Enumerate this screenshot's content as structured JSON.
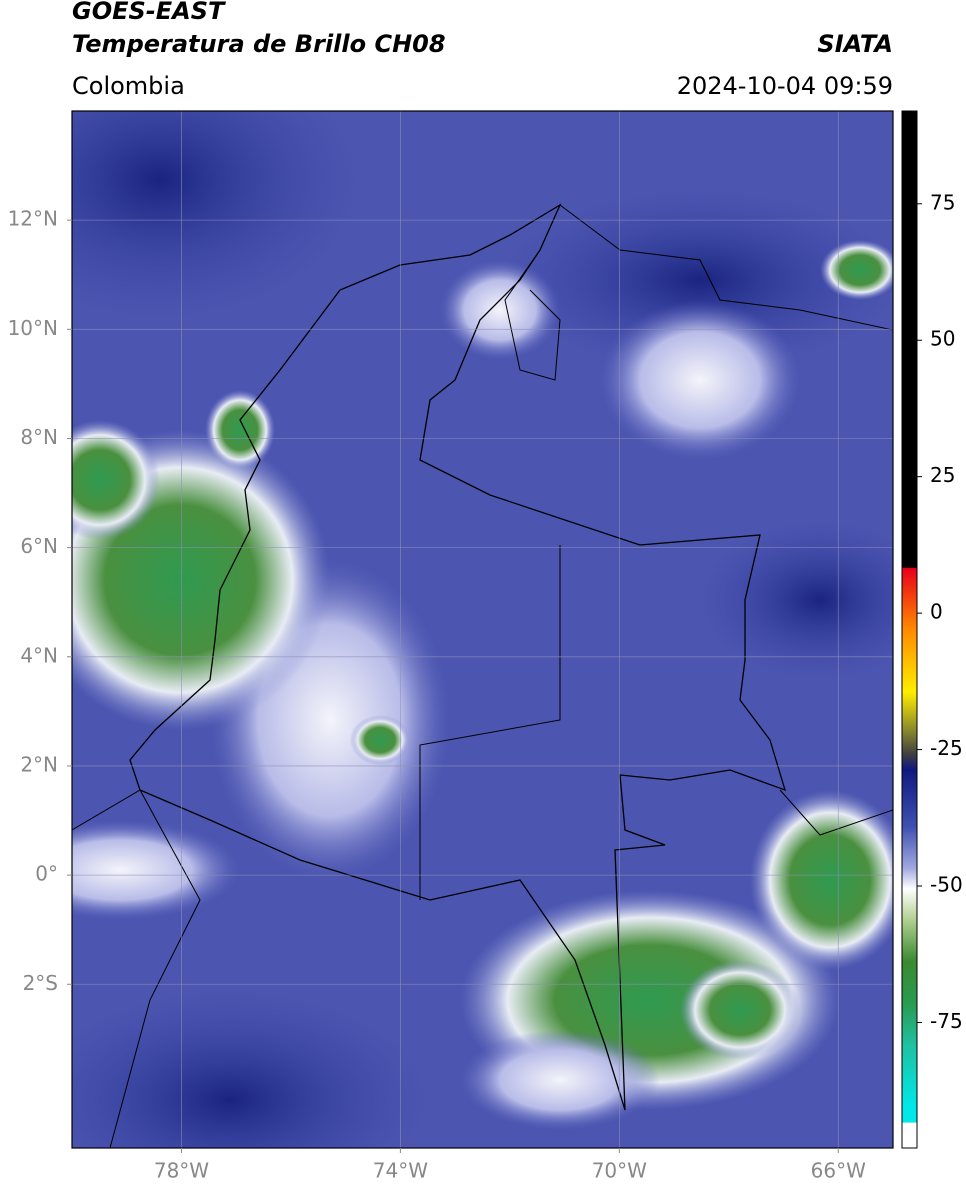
{
  "header": {
    "title": "GOES-EAST",
    "subtitle": "Temperatura de Brillo CH08",
    "source": "SIATA",
    "region": "Colombia",
    "datetime": "2024-10-04 09:59"
  },
  "map": {
    "xlim": [
      -80,
      -65
    ],
    "ylim": [
      -5,
      14
    ],
    "xticks": [
      {
        "value": -78,
        "label": "78°W"
      },
      {
        "value": -74,
        "label": "74°W"
      },
      {
        "value": -70,
        "label": "70°W"
      },
      {
        "value": -66,
        "label": "66°W"
      }
    ],
    "yticks": [
      {
        "value": 12,
        "label": "12°N"
      },
      {
        "value": 10,
        "label": "10°N"
      },
      {
        "value": 8,
        "label": "8°N"
      },
      {
        "value": 6,
        "label": "6°N"
      },
      {
        "value": 4,
        "label": "4°N"
      },
      {
        "value": 2,
        "label": "2°N"
      },
      {
        "value": 0,
        "label": "0°"
      },
      {
        "value": -2,
        "label": "2°S"
      }
    ],
    "grid": true
  },
  "colorbar": {
    "lim": [
      -98,
      92
    ],
    "ticks": [
      75,
      50,
      25,
      0,
      -25,
      -50,
      -75
    ]
  }
}
